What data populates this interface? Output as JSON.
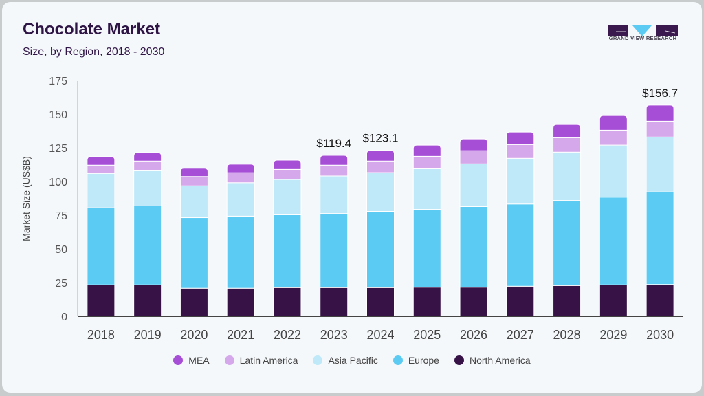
{
  "header": {
    "title": "Chocolate Market",
    "subtitle": "Size, by Region, 2018 - 2030",
    "logo_text": "GRAND VIEW RESEARCH"
  },
  "colors": {
    "MEA": "#a64fd6",
    "Latin America": "#d5a8eb",
    "Asia Pacific": "#bfe8f8",
    "Europe": "#5ccbf4",
    "North America": "#361247",
    "title": "#2f1446"
  },
  "chart_data": {
    "type": "bar",
    "stacked": true,
    "title": "Chocolate Market",
    "subtitle": "Size, by Region, 2018 - 2030",
    "xlabel": "",
    "ylabel": "Market Size (US$B)",
    "ylim": [
      0,
      175
    ],
    "yticks": [
      0,
      25,
      50,
      75,
      100,
      125,
      150,
      175
    ],
    "grid": false,
    "legend_position": "bottom",
    "categories": [
      "2018",
      "2019",
      "2020",
      "2021",
      "2022",
      "2023",
      "2024",
      "2025",
      "2026",
      "2027",
      "2028",
      "2029",
      "2030"
    ],
    "series": [
      {
        "name": "North America",
        "values": [
          23.3,
          23.3,
          20.8,
          20.8,
          21.3,
          21.3,
          21.3,
          21.6,
          21.6,
          22.3,
          22.8,
          23.3,
          23.6
        ]
      },
      {
        "name": "Europe",
        "values": [
          57.2,
          58.6,
          52.4,
          53.5,
          54.0,
          54.9,
          56.5,
          57.7,
          59.8,
          61.0,
          63.1,
          65.1,
          68.6
        ]
      },
      {
        "name": "Asia Pacific",
        "values": [
          25.5,
          26.1,
          23.6,
          24.8,
          26.2,
          27.9,
          28.8,
          30.2,
          31.7,
          33.9,
          35.9,
          38.6,
          40.8
        ]
      },
      {
        "name": "Latin America",
        "values": [
          6.1,
          7.2,
          6.9,
          7.4,
          7.5,
          8.0,
          8.6,
          9.2,
          9.7,
          10.2,
          10.7,
          11.1,
          11.7
        ]
      },
      {
        "name": "MEA",
        "values": [
          6.3,
          6.2,
          6.1,
          6.3,
          6.8,
          7.3,
          7.9,
          8.3,
          8.8,
          9.3,
          9.8,
          10.8,
          12.0
        ]
      }
    ],
    "annotations": [
      {
        "category": "2023",
        "text": "$119.4",
        "value": 119.4
      },
      {
        "category": "2024",
        "text": "$123.1",
        "value": 123.1
      },
      {
        "category": "2030",
        "text": "$156.7",
        "value": 156.7
      }
    ],
    "legend": [
      "MEA",
      "Latin America",
      "Asia Pacific",
      "Europe",
      "North America"
    ]
  }
}
